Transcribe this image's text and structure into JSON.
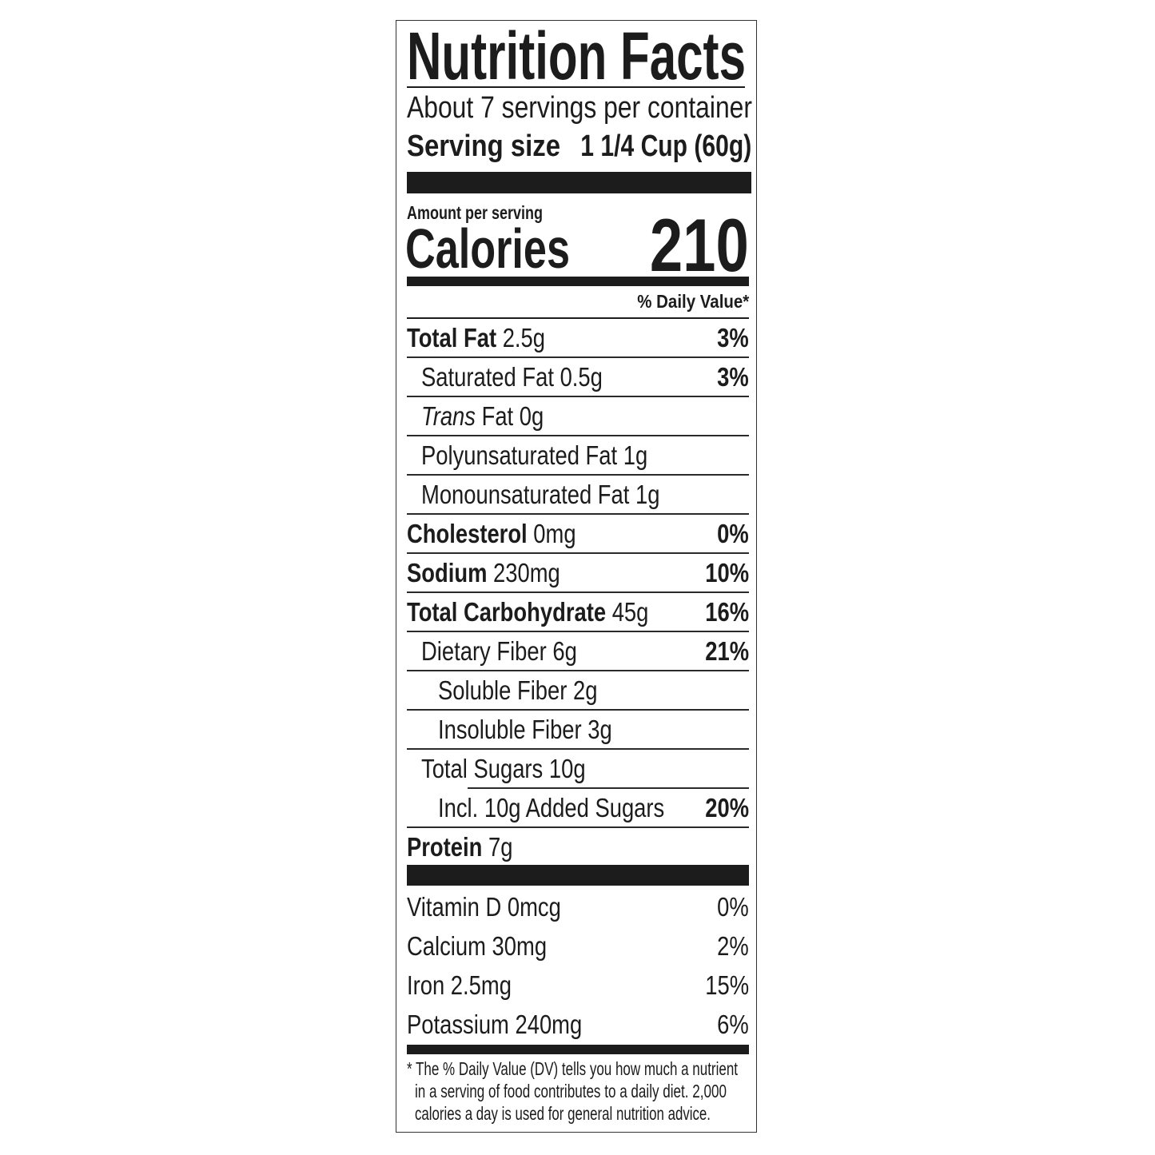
{
  "label": {
    "title": "Nutrition Facts",
    "servings_per_container": "About 7 servings per container",
    "serving_size_label": "Serving size",
    "serving_size_value": "1 1/4 Cup (60g)",
    "amount_per_serving": "Amount per serving",
    "calories_label": "Calories",
    "calories_value": "210",
    "daily_value_header": "% Daily Value*",
    "nutrients": [
      {
        "name": "Total Fat",
        "amount": "2.5g",
        "dv": "3%",
        "bold": true,
        "indent": 0
      },
      {
        "name": "Saturated Fat",
        "amount": "0.5g",
        "dv": "3%",
        "bold": false,
        "indent": 1
      },
      {
        "name_italic": "Trans",
        "name": "Fat",
        "amount": "0g",
        "dv": "",
        "bold": false,
        "indent": 1
      },
      {
        "name": "Polyunsaturated Fat",
        "amount": "1g",
        "dv": "",
        "bold": false,
        "indent": 1
      },
      {
        "name": "Monounsaturated Fat",
        "amount": "1g",
        "dv": "",
        "bold": false,
        "indent": 1
      },
      {
        "name": "Cholesterol",
        "amount": "0mg",
        "dv": "0%",
        "bold": true,
        "indent": 0
      },
      {
        "name": "Sodium",
        "amount": "230mg",
        "dv": "10%",
        "bold": true,
        "indent": 0
      },
      {
        "name": "Total Carbohydrate",
        "amount": "45g",
        "dv": "16%",
        "bold": true,
        "indent": 0
      },
      {
        "name": "Dietary Fiber",
        "amount": "6g",
        "dv": "21%",
        "bold": false,
        "indent": 1
      },
      {
        "name": "Soluble Fiber",
        "amount": "2g",
        "dv": "",
        "bold": false,
        "indent": 2
      },
      {
        "name": "Insoluble Fiber",
        "amount": "3g",
        "dv": "",
        "bold": false,
        "indent": 2
      },
      {
        "name": "Total Sugars",
        "amount": "10g",
        "dv": "",
        "bold": false,
        "indent": 1
      },
      {
        "name": "Incl. 10g Added Sugars",
        "amount": "",
        "dv": "20%",
        "bold": false,
        "indent": 2
      },
      {
        "name": "Protein",
        "amount": "7g",
        "dv": "",
        "bold": true,
        "indent": 0
      }
    ],
    "vitamins": [
      {
        "name": "Vitamin D 0mcg",
        "dv": "0%"
      },
      {
        "name": "Calcium 30mg",
        "dv": "2%"
      },
      {
        "name": "Iron 2.5mg",
        "dv": "15%"
      },
      {
        "name": "Potassium 240mg",
        "dv": "6%"
      }
    ],
    "footnote": [
      "* The % Daily Value (DV) tells you how much a nutrient",
      "in a serving of food contributes to a daily diet. 2,000",
      "calories a day is used for general nutrition advice."
    ]
  }
}
